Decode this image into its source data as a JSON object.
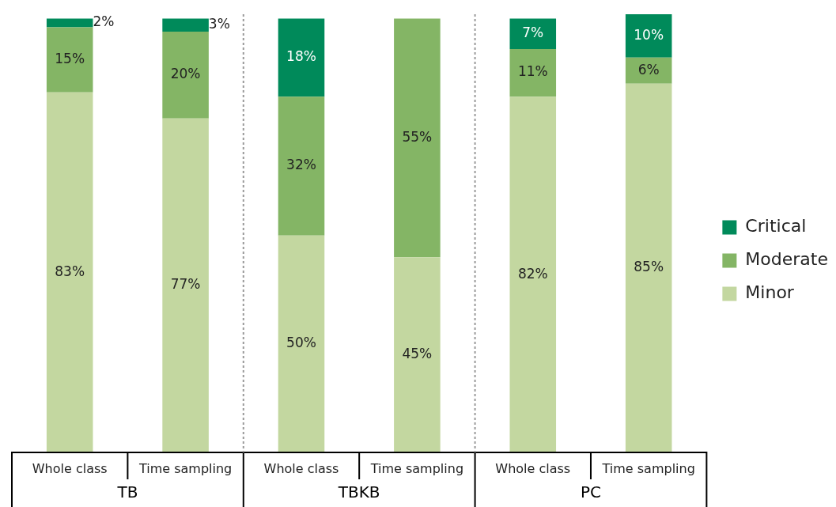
{
  "chart_data": {
    "type": "bar",
    "stacked": true,
    "legend": "right",
    "grid": false,
    "categories": [
      "Whole class",
      "Time sampling",
      "Whole class",
      "Time sampling",
      "Whole class",
      "Time sampling"
    ],
    "annotations": [
      "TB",
      "TBKB",
      "PC"
    ],
    "series": [
      {
        "name": "Minor",
        "color": "#c3d7a0",
        "values": [
          83,
          77,
          50,
          45,
          82,
          85
        ],
        "value_labels": [
          "83%",
          "77%",
          "50%",
          "45%",
          "82%",
          "85%"
        ]
      },
      {
        "name": "Moderate",
        "color": "#84b565",
        "values": [
          15,
          20,
          32,
          55,
          11,
          6
        ],
        "value_labels": [
          "15%",
          "20%",
          "32%",
          "55%",
          "11%",
          "6%"
        ]
      },
      {
        "name": "Critical",
        "color": "#008a5a",
        "values": [
          2,
          3,
          18,
          0,
          7,
          10
        ],
        "value_labels": [
          "2%",
          "3%",
          "18%",
          null,
          "7%",
          "10%"
        ]
      }
    ]
  }
}
